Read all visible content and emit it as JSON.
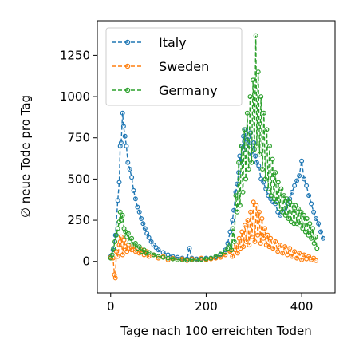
{
  "chart_data": {
    "type": "line",
    "title": "",
    "xlabel": "Tage nach 100 erreichten Toden",
    "ylabel": "∅ neue Tode pro Tag",
    "xlim": [
      -28,
      470
    ],
    "ylim": [
      -190,
      1460
    ],
    "xticks": [
      0,
      200,
      400
    ],
    "xtick_labels": [
      "0",
      "200",
      "400"
    ],
    "yticks": [
      0,
      250,
      500,
      750,
      1000,
      1250
    ],
    "ytick_labels": [
      "0",
      "250",
      "500",
      "750",
      "1000",
      "1250"
    ],
    "grid": false,
    "legend": "top-left",
    "series": [
      {
        "name": "Italy",
        "color": "#1f77b4",
        "points": [
          [
            0,
            30
          ],
          [
            5,
            70
          ],
          [
            10,
            160
          ],
          [
            15,
            370
          ],
          [
            18,
            480
          ],
          [
            20,
            700
          ],
          [
            22,
            720
          ],
          [
            25,
            900
          ],
          [
            27,
            820
          ],
          [
            30,
            760
          ],
          [
            33,
            700
          ],
          [
            36,
            600
          ],
          [
            40,
            560
          ],
          [
            44,
            510
          ],
          [
            48,
            430
          ],
          [
            52,
            380
          ],
          [
            56,
            330
          ],
          [
            60,
            300
          ],
          [
            64,
            260
          ],
          [
            68,
            230
          ],
          [
            72,
            200
          ],
          [
            76,
            170
          ],
          [
            80,
            145
          ],
          [
            85,
            120
          ],
          [
            90,
            100
          ],
          [
            95,
            85
          ],
          [
            100,
            70
          ],
          [
            110,
            55
          ],
          [
            120,
            40
          ],
          [
            130,
            30
          ],
          [
            140,
            25
          ],
          [
            150,
            20
          ],
          [
            160,
            15
          ],
          [
            165,
            80
          ],
          [
            170,
            20
          ],
          [
            180,
            15
          ],
          [
            190,
            15
          ],
          [
            200,
            20
          ],
          [
            210,
            20
          ],
          [
            220,
            25
          ],
          [
            230,
            40
          ],
          [
            240,
            70
          ],
          [
            245,
            110
          ],
          [
            250,
            180
          ],
          [
            255,
            250
          ],
          [
            258,
            310
          ],
          [
            262,
            420
          ],
          [
            265,
            470
          ],
          [
            268,
            540
          ],
          [
            270,
            640
          ],
          [
            272,
            600
          ],
          [
            275,
            700
          ],
          [
            278,
            760
          ],
          [
            280,
            680
          ],
          [
            283,
            800
          ],
          [
            286,
            740
          ],
          [
            290,
            700
          ],
          [
            293,
            780
          ],
          [
            296,
            650
          ],
          [
            300,
            720
          ],
          [
            303,
            640
          ],
          [
            306,
            600
          ],
          [
            310,
            580
          ],
          [
            315,
            500
          ],
          [
            320,
            480
          ],
          [
            325,
            440
          ],
          [
            330,
            400
          ],
          [
            335,
            380
          ],
          [
            340,
            360
          ],
          [
            345,
            350
          ],
          [
            350,
            300
          ],
          [
            355,
            280
          ],
          [
            360,
            300
          ],
          [
            365,
            320
          ],
          [
            370,
            350
          ],
          [
            375,
            380
          ],
          [
            380,
            420
          ],
          [
            385,
            460
          ],
          [
            390,
            490
          ],
          [
            395,
            520
          ],
          [
            400,
            610
          ],
          [
            405,
            500
          ],
          [
            410,
            460
          ],
          [
            415,
            400
          ],
          [
            420,
            350
          ],
          [
            425,
            300
          ],
          [
            430,
            260
          ],
          [
            435,
            230
          ],
          [
            440,
            180
          ],
          [
            445,
            140
          ]
        ]
      },
      {
        "name": "Sweden",
        "color": "#ff7f0e",
        "points": [
          [
            0,
            25
          ],
          [
            5,
            20
          ],
          [
            8,
            -80
          ],
          [
            10,
            -100
          ],
          [
            12,
            60
          ],
          [
            15,
            30
          ],
          [
            18,
            100
          ],
          [
            20,
            120
          ],
          [
            22,
            150
          ],
          [
            25,
            40
          ],
          [
            28,
            130
          ],
          [
            31,
            90
          ],
          [
            34,
            60
          ],
          [
            37,
            100
          ],
          [
            40,
            80
          ],
          [
            44,
            70
          ],
          [
            48,
            90
          ],
          [
            52,
            60
          ],
          [
            56,
            80
          ],
          [
            60,
            50
          ],
          [
            65,
            70
          ],
          [
            70,
            40
          ],
          [
            75,
            60
          ],
          [
            80,
            30
          ],
          [
            90,
            40
          ],
          [
            100,
            20
          ],
          [
            110,
            30
          ],
          [
            120,
            10
          ],
          [
            130,
            20
          ],
          [
            140,
            10
          ],
          [
            150,
            15
          ],
          [
            160,
            5
          ],
          [
            170,
            15
          ],
          [
            180,
            10
          ],
          [
            190,
            20
          ],
          [
            200,
            10
          ],
          [
            210,
            15
          ],
          [
            220,
            20
          ],
          [
            230,
            25
          ],
          [
            240,
            40
          ],
          [
            250,
            60
          ],
          [
            255,
            30
          ],
          [
            260,
            70
          ],
          [
            263,
            100
          ],
          [
            266,
            50
          ],
          [
            269,
            140
          ],
          [
            272,
            80
          ],
          [
            275,
            180
          ],
          [
            278,
            90
          ],
          [
            281,
            220
          ],
          [
            284,
            120
          ],
          [
            287,
            250
          ],
          [
            290,
            100
          ],
          [
            293,
            300
          ],
          [
            296,
            150
          ],
          [
            299,
            360
          ],
          [
            302,
            120
          ],
          [
            305,
            340
          ],
          [
            308,
            160
          ],
          [
            311,
            300
          ],
          [
            314,
            110
          ],
          [
            317,
            260
          ],
          [
            320,
            140
          ],
          [
            323,
            200
          ],
          [
            326,
            100
          ],
          [
            329,
            160
          ],
          [
            332,
            90
          ],
          [
            335,
            140
          ],
          [
            340,
            80
          ],
          [
            345,
            120
          ],
          [
            350,
            60
          ],
          [
            355,
            100
          ],
          [
            360,
            50
          ],
          [
            365,
            90
          ],
          [
            370,
            40
          ],
          [
            375,
            80
          ],
          [
            380,
            30
          ],
          [
            385,
            60
          ],
          [
            390,
            20
          ],
          [
            395,
            50
          ],
          [
            400,
            10
          ],
          [
            405,
            40
          ],
          [
            410,
            15
          ],
          [
            415,
            30
          ],
          [
            420,
            10
          ],
          [
            425,
            20
          ],
          [
            430,
            5
          ]
        ]
      },
      {
        "name": "Germany",
        "color": "#2ca02c",
        "points": [
          [
            0,
            20
          ],
          [
            3,
            40
          ],
          [
            6,
            80
          ],
          [
            9,
            120
          ],
          [
            12,
            160
          ],
          [
            15,
            200
          ],
          [
            18,
            240
          ],
          [
            20,
            300
          ],
          [
            22,
            250
          ],
          [
            25,
            280
          ],
          [
            28,
            200
          ],
          [
            31,
            180
          ],
          [
            34,
            150
          ],
          [
            37,
            170
          ],
          [
            40,
            120
          ],
          [
            44,
            140
          ],
          [
            48,
            100
          ],
          [
            52,
            110
          ],
          [
            56,
            80
          ],
          [
            60,
            90
          ],
          [
            65,
            60
          ],
          [
            70,
            70
          ],
          [
            75,
            50
          ],
          [
            80,
            55
          ],
          [
            90,
            40
          ],
          [
            100,
            30
          ],
          [
            110,
            25
          ],
          [
            120,
            20
          ],
          [
            130,
            15
          ],
          [
            140,
            10
          ],
          [
            150,
            10
          ],
          [
            160,
            8
          ],
          [
            170,
            10
          ],
          [
            180,
            8
          ],
          [
            190,
            12
          ],
          [
            200,
            15
          ],
          [
            210,
            20
          ],
          [
            220,
            30
          ],
          [
            230,
            45
          ],
          [
            240,
            60
          ],
          [
            245,
            80
          ],
          [
            250,
            100
          ],
          [
            253,
            70
          ],
          [
            256,
            200
          ],
          [
            259,
            120
          ],
          [
            262,
            400
          ],
          [
            265,
            300
          ],
          [
            268,
            600
          ],
          [
            271,
            340
          ],
          [
            274,
            700
          ],
          [
            277,
            420
          ],
          [
            280,
            800
          ],
          [
            283,
            500
          ],
          [
            286,
            900
          ],
          [
            289,
            560
          ],
          [
            292,
            1000
          ],
          [
            295,
            600
          ],
          [
            298,
            1100
          ],
          [
            301,
            680
          ],
          [
            304,
            1370
          ],
          [
            306,
            700
          ],
          [
            309,
            1150
          ],
          [
            312,
            650
          ],
          [
            315,
            1000
          ],
          [
            318,
            560
          ],
          [
            321,
            900
          ],
          [
            324,
            500
          ],
          [
            327,
            800
          ],
          [
            330,
            440
          ],
          [
            333,
            700
          ],
          [
            336,
            400
          ],
          [
            339,
            620
          ],
          [
            342,
            380
          ],
          [
            345,
            540
          ],
          [
            348,
            360
          ],
          [
            351,
            480
          ],
          [
            354,
            320
          ],
          [
            357,
            440
          ],
          [
            360,
            300
          ],
          [
            363,
            400
          ],
          [
            366,
            280
          ],
          [
            369,
            380
          ],
          [
            372,
            260
          ],
          [
            375,
            360
          ],
          [
            378,
            240
          ],
          [
            381,
            340
          ],
          [
            384,
            230
          ],
          [
            387,
            340
          ],
          [
            390,
            230
          ],
          [
            393,
            320
          ],
          [
            396,
            220
          ],
          [
            399,
            300
          ],
          [
            402,
            200
          ],
          [
            405,
            280
          ],
          [
            408,
            180
          ],
          [
            411,
            260
          ],
          [
            414,
            160
          ],
          [
            417,
            230
          ],
          [
            420,
            140
          ],
          [
            423,
            200
          ],
          [
            426,
            110
          ],
          [
            429,
            150
          ],
          [
            432,
            80
          ]
        ]
      }
    ]
  }
}
